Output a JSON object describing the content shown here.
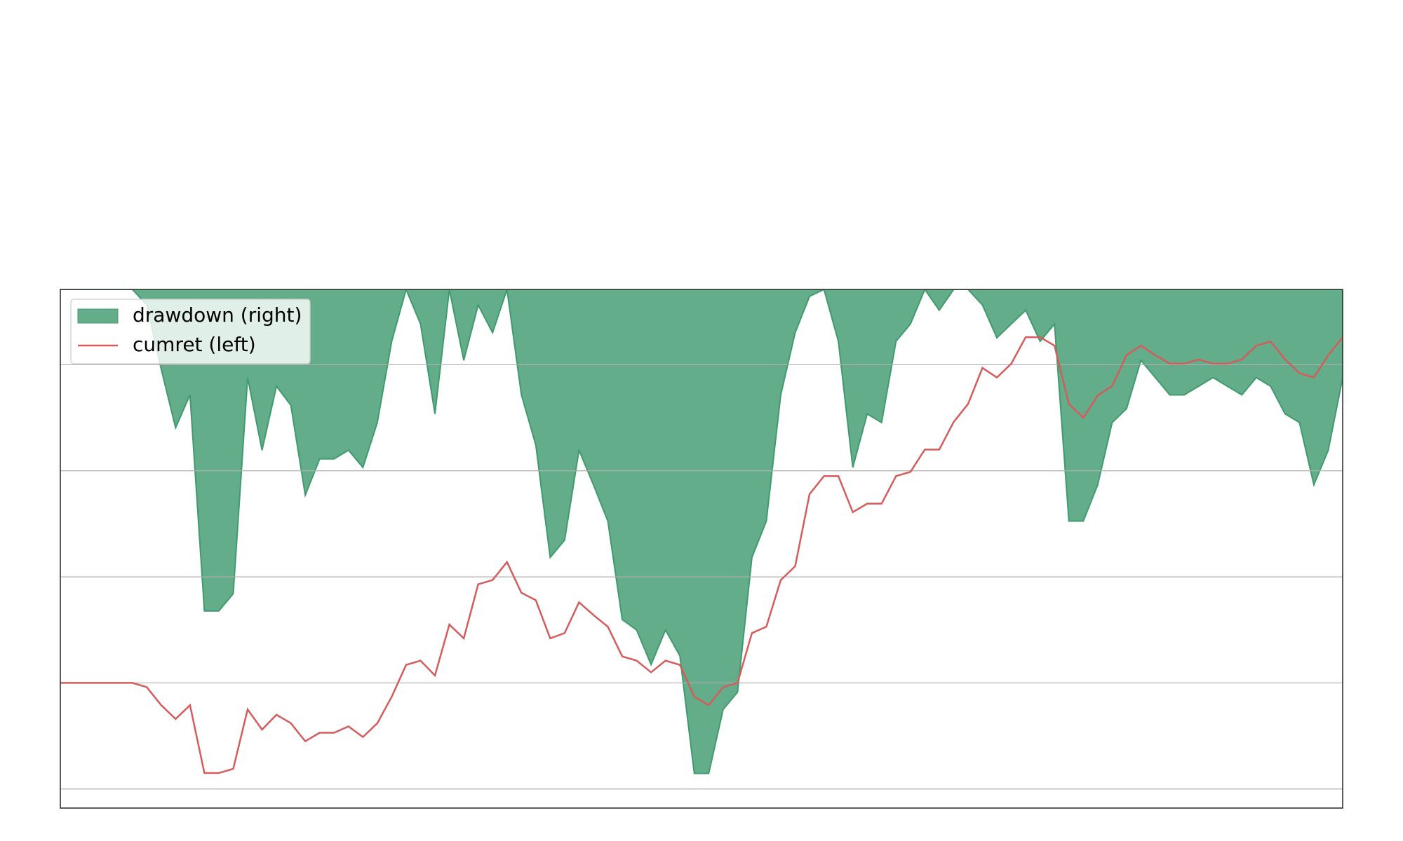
{
  "chart_data": {
    "type": "line",
    "x": [
      0,
      1,
      2,
      3,
      4,
      5,
      6,
      7,
      8,
      9,
      10,
      11,
      12,
      13,
      14,
      15,
      16,
      17,
      18,
      19,
      20,
      21,
      22,
      23,
      24,
      25,
      26,
      27,
      28,
      29,
      30,
      31,
      32,
      33,
      34,
      35,
      36,
      37,
      38,
      39,
      40,
      41,
      42,
      43,
      44,
      45,
      46,
      47,
      48,
      49,
      50,
      51,
      52,
      53,
      54,
      55,
      56,
      57,
      58,
      59,
      60,
      61,
      62,
      63,
      64,
      65,
      66,
      67,
      68,
      69,
      70,
      71,
      72,
      73,
      74,
      75,
      76,
      77,
      78,
      79,
      80,
      81,
      82,
      83,
      84,
      85,
      86,
      87,
      88,
      89
    ],
    "xlim": [
      0,
      89
    ],
    "ylim": [
      -0.118,
      0.371
    ],
    "yticks": [
      -0.1,
      0,
      0.1,
      0.2,
      0.3
    ],
    "y2lim": [
      -0.3,
      0
    ],
    "grid": true,
    "legend": "upper left",
    "series": [
      {
        "name": "drawdown (right)",
        "type": "area",
        "axis": "y2",
        "color": "#63ad8a",
        "edgecolor": "#3f9b6e",
        "values": [
          0,
          0,
          0,
          0,
          0,
          0,
          -0.009,
          -0.046,
          -0.08,
          -0.061,
          -0.186,
          -0.186,
          -0.176,
          -0.051,
          -0.093,
          -0.056,
          -0.067,
          -0.119,
          -0.098,
          -0.098,
          -0.093,
          -0.103,
          -0.077,
          -0.03,
          0,
          -0.02,
          -0.072,
          0,
          -0.041,
          -0.009,
          -0.025,
          0,
          -0.061,
          -0.09,
          -0.155,
          -0.145,
          -0.093,
          -0.113,
          -0.134,
          -0.191,
          -0.197,
          -0.217,
          -0.197,
          -0.212,
          -0.28,
          -0.28,
          -0.243,
          -0.233,
          -0.155,
          -0.134,
          -0.061,
          -0.025,
          -0.004,
          0,
          -0.03,
          -0.103,
          -0.072,
          -0.077,
          -0.03,
          -0.02,
          0,
          -0.012,
          0,
          0,
          -0.009,
          -0.028,
          -0.02,
          -0.012,
          -0.03,
          -0.02,
          -0.134,
          -0.134,
          -0.113,
          -0.077,
          -0.069,
          -0.041,
          -0.051,
          -0.061,
          -0.061,
          -0.056,
          -0.051,
          -0.056,
          -0.061,
          -0.051,
          -0.056,
          -0.072,
          -0.077,
          -0.113,
          -0.093,
          -0.051
        ]
      },
      {
        "name": "cumret (left)",
        "type": "line",
        "axis": "y",
        "color": "#d45c5c",
        "values": [
          0,
          0,
          0,
          0,
          0,
          0,
          -0.004,
          -0.021,
          -0.034,
          -0.021,
          -0.085,
          -0.085,
          -0.081,
          -0.025,
          -0.044,
          -0.03,
          -0.038,
          -0.055,
          -0.047,
          -0.047,
          -0.041,
          -0.051,
          -0.038,
          -0.013,
          0.017,
          0.021,
          0.007,
          0.055,
          0.042,
          0.093,
          0.097,
          0.114,
          0.085,
          0.078,
          0.042,
          0.047,
          0.076,
          0.064,
          0.053,
          0.025,
          0.021,
          0.01,
          0.021,
          0.017,
          -0.013,
          -0.021,
          -0.004,
          0,
          0.047,
          0.053,
          0.097,
          0.11,
          0.178,
          0.195,
          0.195,
          0.161,
          0.169,
          0.169,
          0.195,
          0.199,
          0.22,
          0.22,
          0.246,
          0.263,
          0.297,
          0.288,
          0.301,
          0.326,
          0.326,
          0.318,
          0.263,
          0.25,
          0.271,
          0.28,
          0.309,
          0.318,
          0.309,
          0.301,
          0.301,
          0.305,
          0.301,
          0.301,
          0.305,
          0.318,
          0.322,
          0.305,
          0.292,
          0.288,
          0.309,
          0.326
        ]
      }
    ]
  }
}
